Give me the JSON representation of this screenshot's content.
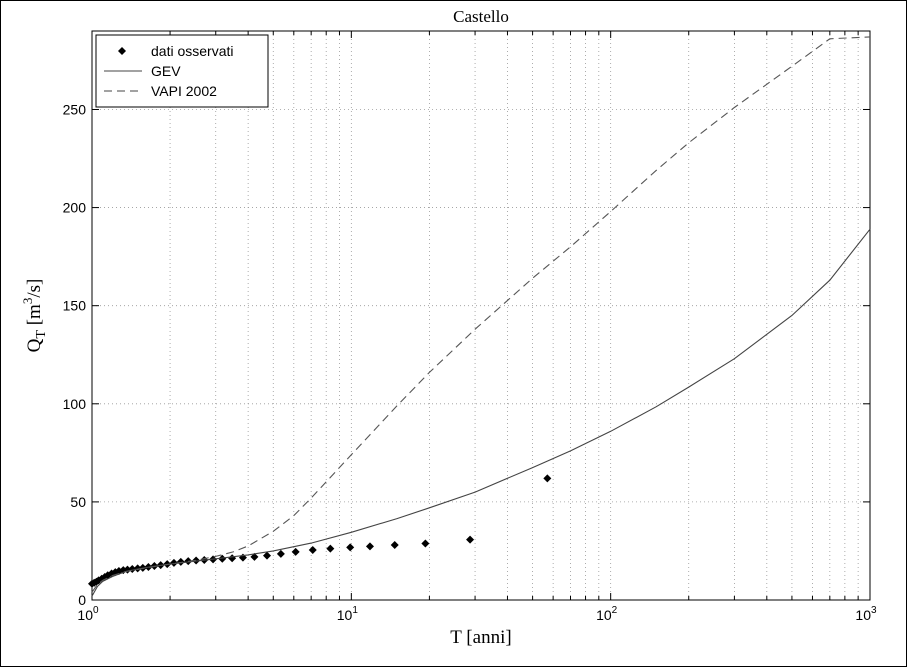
{
  "chart_data": {
    "type": "scatter",
    "title": "Castello",
    "xlabel": "T [anni]",
    "ylabel_parts": {
      "q": "Q",
      "sub": "T",
      "open": " [m",
      "exp": "3",
      "close": "/s]"
    },
    "xscale": "log",
    "xlim": [
      1,
      1000
    ],
    "ylim": [
      0,
      290
    ],
    "yticks": [
      0,
      50,
      100,
      150,
      200,
      250
    ],
    "xticks": [
      {
        "value": 1,
        "base": "10",
        "exp": "0"
      },
      {
        "value": 10,
        "base": "10",
        "exp": "1"
      },
      {
        "value": 100,
        "base": "10",
        "exp": "2"
      },
      {
        "value": 1000,
        "base": "10",
        "exp": "3"
      }
    ],
    "grid": true,
    "legend_position": "top-left",
    "series": [
      {
        "name": "dati osservati",
        "style": "diamond-markers",
        "x": [
          1.0,
          1.02,
          1.04,
          1.06,
          1.09,
          1.12,
          1.15,
          1.19,
          1.23,
          1.27,
          1.32,
          1.37,
          1.43,
          1.5,
          1.57,
          1.65,
          1.74,
          1.84,
          1.95,
          2.07,
          2.2,
          2.35,
          2.52,
          2.71,
          2.93,
          3.18,
          3.47,
          3.82,
          4.23,
          4.73,
          5.35,
          6.1,
          7.1,
          8.3,
          9.9,
          11.8,
          14.7,
          19.3,
          28.7,
          57.0
        ],
        "y": [
          8.3,
          8.8,
          9.3,
          10.0,
          10.8,
          11.7,
          12.6,
          13.5,
          14.2,
          14.8,
          15.2,
          15.5,
          15.8,
          16.1,
          16.4,
          16.8,
          17.3,
          17.8,
          18.3,
          18.9,
          19.4,
          19.8,
          20.1,
          20.4,
          20.7,
          21.0,
          21.3,
          21.6,
          22.0,
          22.6,
          23.5,
          24.5,
          25.5,
          26.2,
          26.8,
          27.3,
          28.0,
          28.8,
          30.8,
          62.0
        ]
      },
      {
        "name": "GEV",
        "style": "solid",
        "x": [
          1.0,
          1.05,
          1.1,
          1.2,
          1.35,
          1.5,
          1.7,
          2.0,
          2.5,
          3.0,
          4.0,
          5.0,
          7.0,
          10,
          15,
          20,
          30,
          50,
          70,
          100,
          150,
          200,
          300,
          500,
          700,
          1000
        ],
        "y": [
          2.0,
          7.0,
          9.5,
          12.0,
          14.5,
          15.8,
          17.0,
          18.3,
          19.8,
          21.0,
          23.0,
          25.0,
          29.0,
          34.5,
          41.5,
          47.0,
          55.0,
          67.5,
          76.0,
          86.0,
          98.5,
          108.5,
          123.0,
          145.0,
          163.0,
          189.0
        ]
      },
      {
        "name": "VAPI 2002",
        "style": "dashed",
        "x": [
          1.0,
          1.05,
          1.1,
          1.2,
          1.35,
          1.5,
          1.7,
          2.0,
          2.5,
          3.0,
          3.5,
          4.0,
          5.0,
          6.0,
          7.0,
          10,
          15,
          20,
          30,
          50,
          70,
          100,
          150,
          200,
          300,
          500,
          700,
          1000
        ],
        "y": [
          4.0,
          8.0,
          10.0,
          12.5,
          14.5,
          15.6,
          16.8,
          18.3,
          20.2,
          22.2,
          24.5,
          27.5,
          35.0,
          43.0,
          52.0,
          74.0,
          99.0,
          116.0,
          138.0,
          164.0,
          180.0,
          198.0,
          219.0,
          233.0,
          251.0,
          272.0,
          286.0,
          287.0
        ]
      }
    ]
  }
}
